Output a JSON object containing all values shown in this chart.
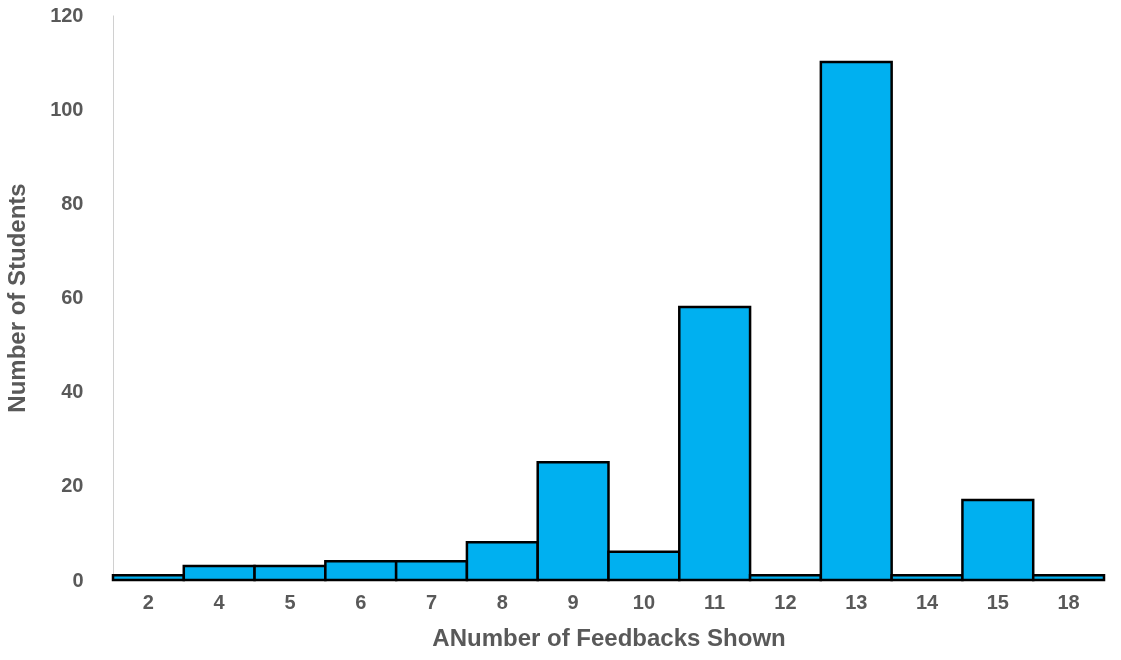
{
  "chart_data": {
    "type": "bar",
    "xlabel": "ANumber of Feedbacks Shown",
    "ylabel": "Number of Students",
    "categories": [
      "2",
      "4",
      "5",
      "6",
      "7",
      "8",
      "9",
      "10",
      "11",
      "12",
      "13",
      "14",
      "15",
      "18"
    ],
    "values": [
      1,
      3,
      3,
      4,
      4,
      8,
      25,
      6,
      58,
      1,
      110,
      1,
      17,
      1
    ],
    "color": "#00b0f0",
    "ylim": [
      0,
      120
    ],
    "yticks": [
      0,
      20,
      40,
      60,
      80,
      100,
      120
    ],
    "grid": false
  }
}
